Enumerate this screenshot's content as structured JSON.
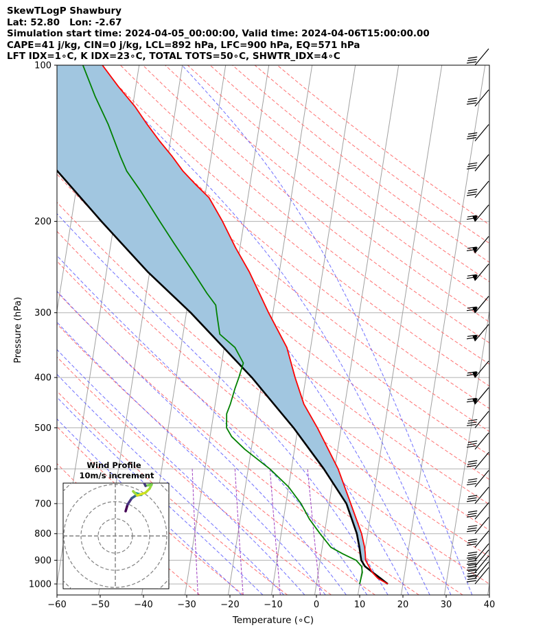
{
  "header": {
    "line1": "SkewTLogP Shawbury",
    "line2": "Lat: 52.80   Lon: -2.67",
    "line3": "Simulation start time: 2024-04-05_00:00:00, Valid time: 2024-04-06T15:00:00.00",
    "line4": "CAPE=41 j/kg, CIN=0 j/kg, LCL=892 hPa, LFC=900 hPa, EQ=571 hPa",
    "line5": "LFT IDX=1$^\\circ$C, K IDX=23$^\\circ$C, TOTAL TOTS=50$^\\circ$C, SHWTR_IDX=4$^\\circ$C",
    "line5_display": "LFT IDX=1∘C, K IDX=23∘C, TOTAL TOTS=50∘C, SHWTR_IDX=4∘C"
  },
  "chart_data": {
    "type": "line",
    "subtype": "skew-t log-p",
    "xlabel": "Temperature (∘C)",
    "ylabel": "Pressure (hPa)",
    "xlim": [
      -60,
      40
    ],
    "ylim": [
      1050,
      100
    ],
    "yscale": "log",
    "xticks": [
      -60,
      -50,
      -40,
      -30,
      -20,
      -10,
      0,
      10,
      20,
      30,
      40
    ],
    "yticks": [
      100,
      200,
      300,
      400,
      500,
      600,
      700,
      800,
      900,
      1000
    ],
    "grid": true,
    "series": [
      {
        "name": "temperature",
        "color": "#ff0000",
        "points": [
          [
            1000,
            16.5
          ],
          [
            975,
            14
          ],
          [
            950,
            12.5
          ],
          [
            925,
            11.5
          ],
          [
            900,
            10.5
          ],
          [
            875,
            10.2
          ],
          [
            850,
            9.8
          ],
          [
            800,
            8.6
          ],
          [
            700,
            5.0
          ],
          [
            600,
            0.8
          ],
          [
            500,
            -5.5
          ],
          [
            450,
            -9.5
          ],
          [
            400,
            -12.5
          ],
          [
            350,
            -15.5
          ],
          [
            300,
            -21.0
          ],
          [
            250,
            -27.0
          ],
          [
            225,
            -31.0
          ],
          [
            200,
            -35.0
          ],
          [
            180,
            -39.0
          ],
          [
            170,
            -42.5
          ],
          [
            160,
            -46.0
          ],
          [
            150,
            -49.0
          ],
          [
            140,
            -52.5
          ],
          [
            130,
            -56.0
          ],
          [
            120,
            -59.5
          ],
          [
            110,
            -64.0
          ],
          [
            100,
            -68.5
          ]
        ]
      },
      {
        "name": "dewpoint",
        "color": "#008000",
        "points": [
          [
            1000,
            10.0
          ],
          [
            975,
            10.1
          ],
          [
            950,
            10.2
          ],
          [
            925,
            9.8
          ],
          [
            900,
            8.3
          ],
          [
            875,
            5.0
          ],
          [
            850,
            2.0
          ],
          [
            800,
            -1.0
          ],
          [
            750,
            -4.0
          ],
          [
            700,
            -6.5
          ],
          [
            650,
            -10.0
          ],
          [
            600,
            -15.0
          ],
          [
            550,
            -21.5
          ],
          [
            520,
            -25.0
          ],
          [
            500,
            -26.5
          ],
          [
            470,
            -27.0
          ],
          [
            450,
            -26.5
          ],
          [
            420,
            -26.0
          ],
          [
            400,
            -25.5
          ],
          [
            375,
            -25.0
          ],
          [
            350,
            -27.5
          ],
          [
            330,
            -31.5
          ],
          [
            310,
            -32.5
          ],
          [
            300,
            -33.0
          ],
          [
            290,
            -33.5
          ],
          [
            275,
            -36.0
          ],
          [
            250,
            -40.0
          ],
          [
            220,
            -45.5
          ],
          [
            200,
            -49.5
          ],
          [
            175,
            -55.0
          ],
          [
            160,
            -59.0
          ],
          [
            150,
            -61.0
          ],
          [
            130,
            -65.0
          ],
          [
            115,
            -69.0
          ],
          [
            100,
            -73.0
          ]
        ]
      },
      {
        "name": "parcel",
        "color": "#000000",
        "points": [
          [
            1000,
            16.5
          ],
          [
            975,
            14.6
          ],
          [
            950,
            12.6
          ],
          [
            925,
            10.6
          ],
          [
            900,
            9.5
          ],
          [
            850,
            8.6
          ],
          [
            800,
            7.5
          ],
          [
            700,
            4.0
          ],
          [
            600,
            -2.5
          ],
          [
            500,
            -11.0
          ],
          [
            400,
            -22.5
          ],
          [
            300,
            -39.0
          ],
          [
            250,
            -50.5
          ],
          [
            200,
            -63.0
          ],
          [
            150,
            -78.5
          ],
          [
            125,
            -88.5
          ],
          [
            100,
            -100.0
          ]
        ]
      }
    ],
    "cape_fill_color": "#a1c6e0",
    "background_lines": {
      "isotherms": "#a0a0a0",
      "dry_adiabats": "#ff6060",
      "moist_adiabats": "#5555ff",
      "mixing_ratio": "#a040c0"
    },
    "wind_barbs_pressure": [
      100,
      120,
      140,
      160,
      180,
      200,
      230,
      260,
      300,
      340,
      400,
      450,
      500,
      550,
      600,
      650,
      700,
      750,
      800,
      850,
      900,
      925,
      950,
      975,
      1000
    ],
    "inset": {
      "title": "Wind Profile",
      "subtitle": "10m/s increment"
    }
  }
}
